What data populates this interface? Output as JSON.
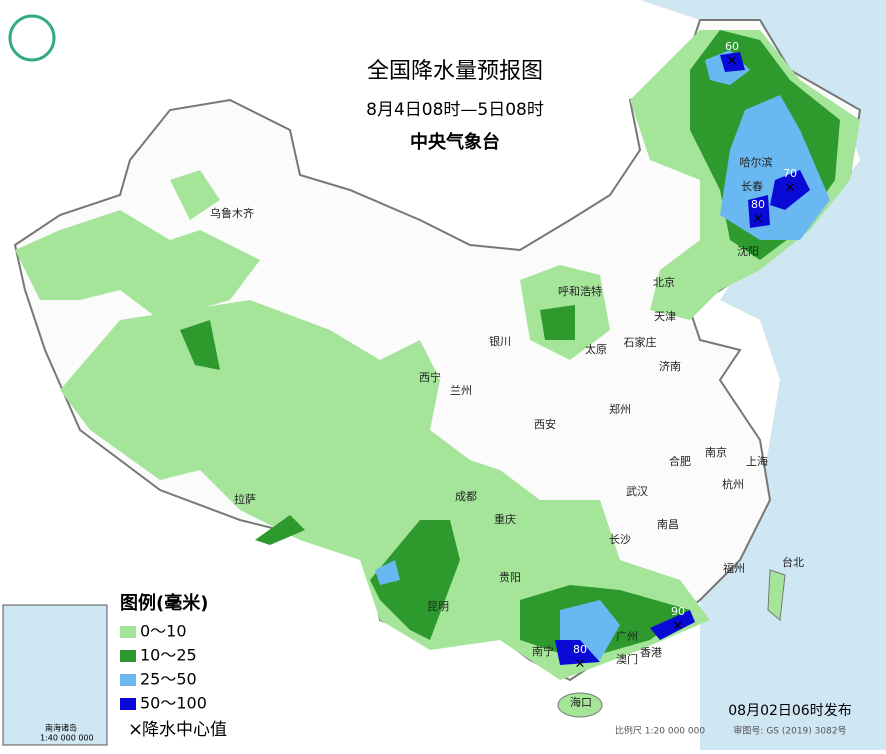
{
  "header": {
    "title": "全国降水量预报图",
    "period": "8月4日08时—5日08时",
    "issuer": "中央气象台"
  },
  "legend": {
    "title": "图例(毫米)",
    "items": [
      "0～10",
      "10～25",
      "25～50",
      "50～100"
    ],
    "center": "降水中心值"
  },
  "cities": [
    "乌鲁木齐",
    "哈尔滨",
    "长春",
    "沈阳",
    "呼和浩特",
    "北京",
    "天津",
    "银川",
    "太原",
    "石家庄",
    "西宁",
    "兰州",
    "济南",
    "西安",
    "郑州",
    "合肥",
    "南京",
    "上海",
    "杭州",
    "拉萨",
    "成都",
    "武汉",
    "重庆",
    "南昌",
    "长沙",
    "福州",
    "台北",
    "贵阳",
    "昆明",
    "广州",
    "南宁",
    "澳门",
    "香港",
    "海口"
  ],
  "rain_centers": [
    60,
    70,
    80,
    80,
    90
  ],
  "footer": {
    "published": "08月02日06时发布",
    "scale": "比例尺 1:20 000 000",
    "approval": "审图号: GS (2019) 3082号"
  },
  "inset": {
    "label": "南海诸岛",
    "scale": "1:40 000 000"
  }
}
